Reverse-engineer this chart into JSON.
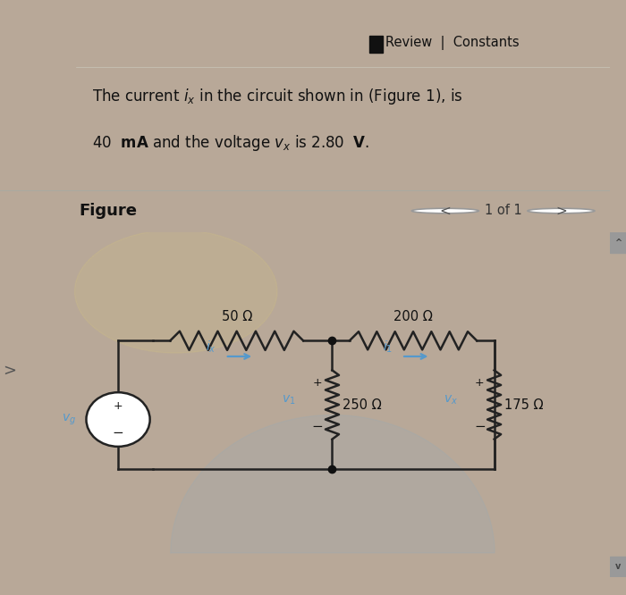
{
  "outer_bg": "#b8a898",
  "panel_bg": "#e0ddd0",
  "figure_area_bg": "#c8c5b5",
  "header_bg": "#dedad0",
  "scrollbar_color": "#aaaaaa",
  "line_color": "#222222",
  "blue_color": "#5599cc",
  "review_text": "Review  |  Constants",
  "line1": "The current $\\mathit{i}_{\\mathit{x}}$ in the circuit shown in (Figure 1), is",
  "line2_a": "40  ",
  "line2_b": "mA",
  "line2_c": " and the voltage ",
  "line2_d": "$\\mathit{v}_{\\mathit{x}}$",
  "line2_e": " is 2.80  ",
  "line2_f": "V",
  "figure_label": "Figure",
  "page_indicator": "1 of 1",
  "R1_label": "50 Ω",
  "R2_label": "200 Ω",
  "R3_label": "250 Ω",
  "R4_label": "175 Ω",
  "ix_label": "$i_x$",
  "i1_label": "$i_1$",
  "v1_label": "$v_1$",
  "vx_label": "$v_x$",
  "vg_label": "$v_g$"
}
